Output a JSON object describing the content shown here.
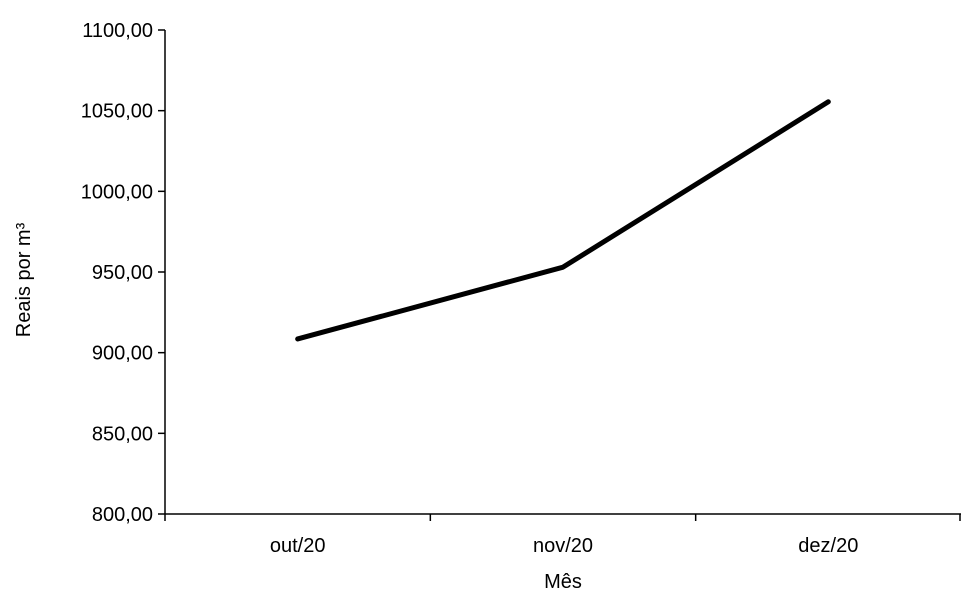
{
  "chart_data": {
    "type": "line",
    "categories": [
      "out/20",
      "nov/20",
      "dez/20"
    ],
    "series": [
      {
        "values": [
          908.5,
          953.0,
          1055.5
        ]
      }
    ],
    "xlabel": "Mês",
    "ylabel": "Reais por m³",
    "ylim": [
      800,
      1100
    ],
    "yticks": [
      800,
      850,
      900,
      950,
      1000,
      1050,
      1100
    ],
    "ytick_labels": [
      "800,00",
      "850,00",
      "900,00",
      "950,00",
      "1000,00",
      "1050,00",
      "1100,00"
    ],
    "grid": false,
    "legend": "none",
    "line_color": "#000000"
  }
}
